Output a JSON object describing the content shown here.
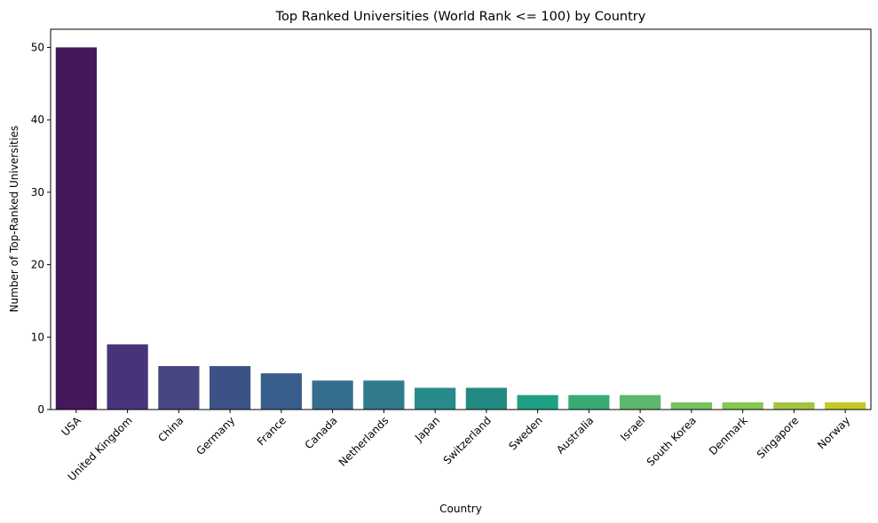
{
  "chart_data": {
    "type": "bar",
    "title": "Top Ranked Universities (World Rank <= 100) by Country",
    "xlabel": "Country",
    "ylabel": "Number of Top-Ranked Universities",
    "categories": [
      "USA",
      "United Kingdom",
      "China",
      "Germany",
      "France",
      "Canada",
      "Netherlands",
      "Japan",
      "Switzerland",
      "Sweden",
      "Australia",
      "Israel",
      "South Korea",
      "Denmark",
      "Singapore",
      "Norway"
    ],
    "values": [
      50,
      9,
      6,
      6,
      5,
      4,
      4,
      3,
      3,
      2,
      2,
      2,
      1,
      1,
      1,
      1
    ],
    "ylim": [
      0,
      52.5
    ],
    "yticks": [
      0,
      10,
      20,
      30,
      40,
      50
    ],
    "colors": [
      "#45185b",
      "#48337a",
      "#474681",
      "#3c5287",
      "#385e8c",
      "#356e8d",
      "#307a8c",
      "#288a8a",
      "#238a82",
      "#1fa084",
      "#3aaa74",
      "#5db76c",
      "#75c25f",
      "#86c752",
      "#a3c443",
      "#c5c825"
    ],
    "grid": false,
    "legend": "none"
  }
}
